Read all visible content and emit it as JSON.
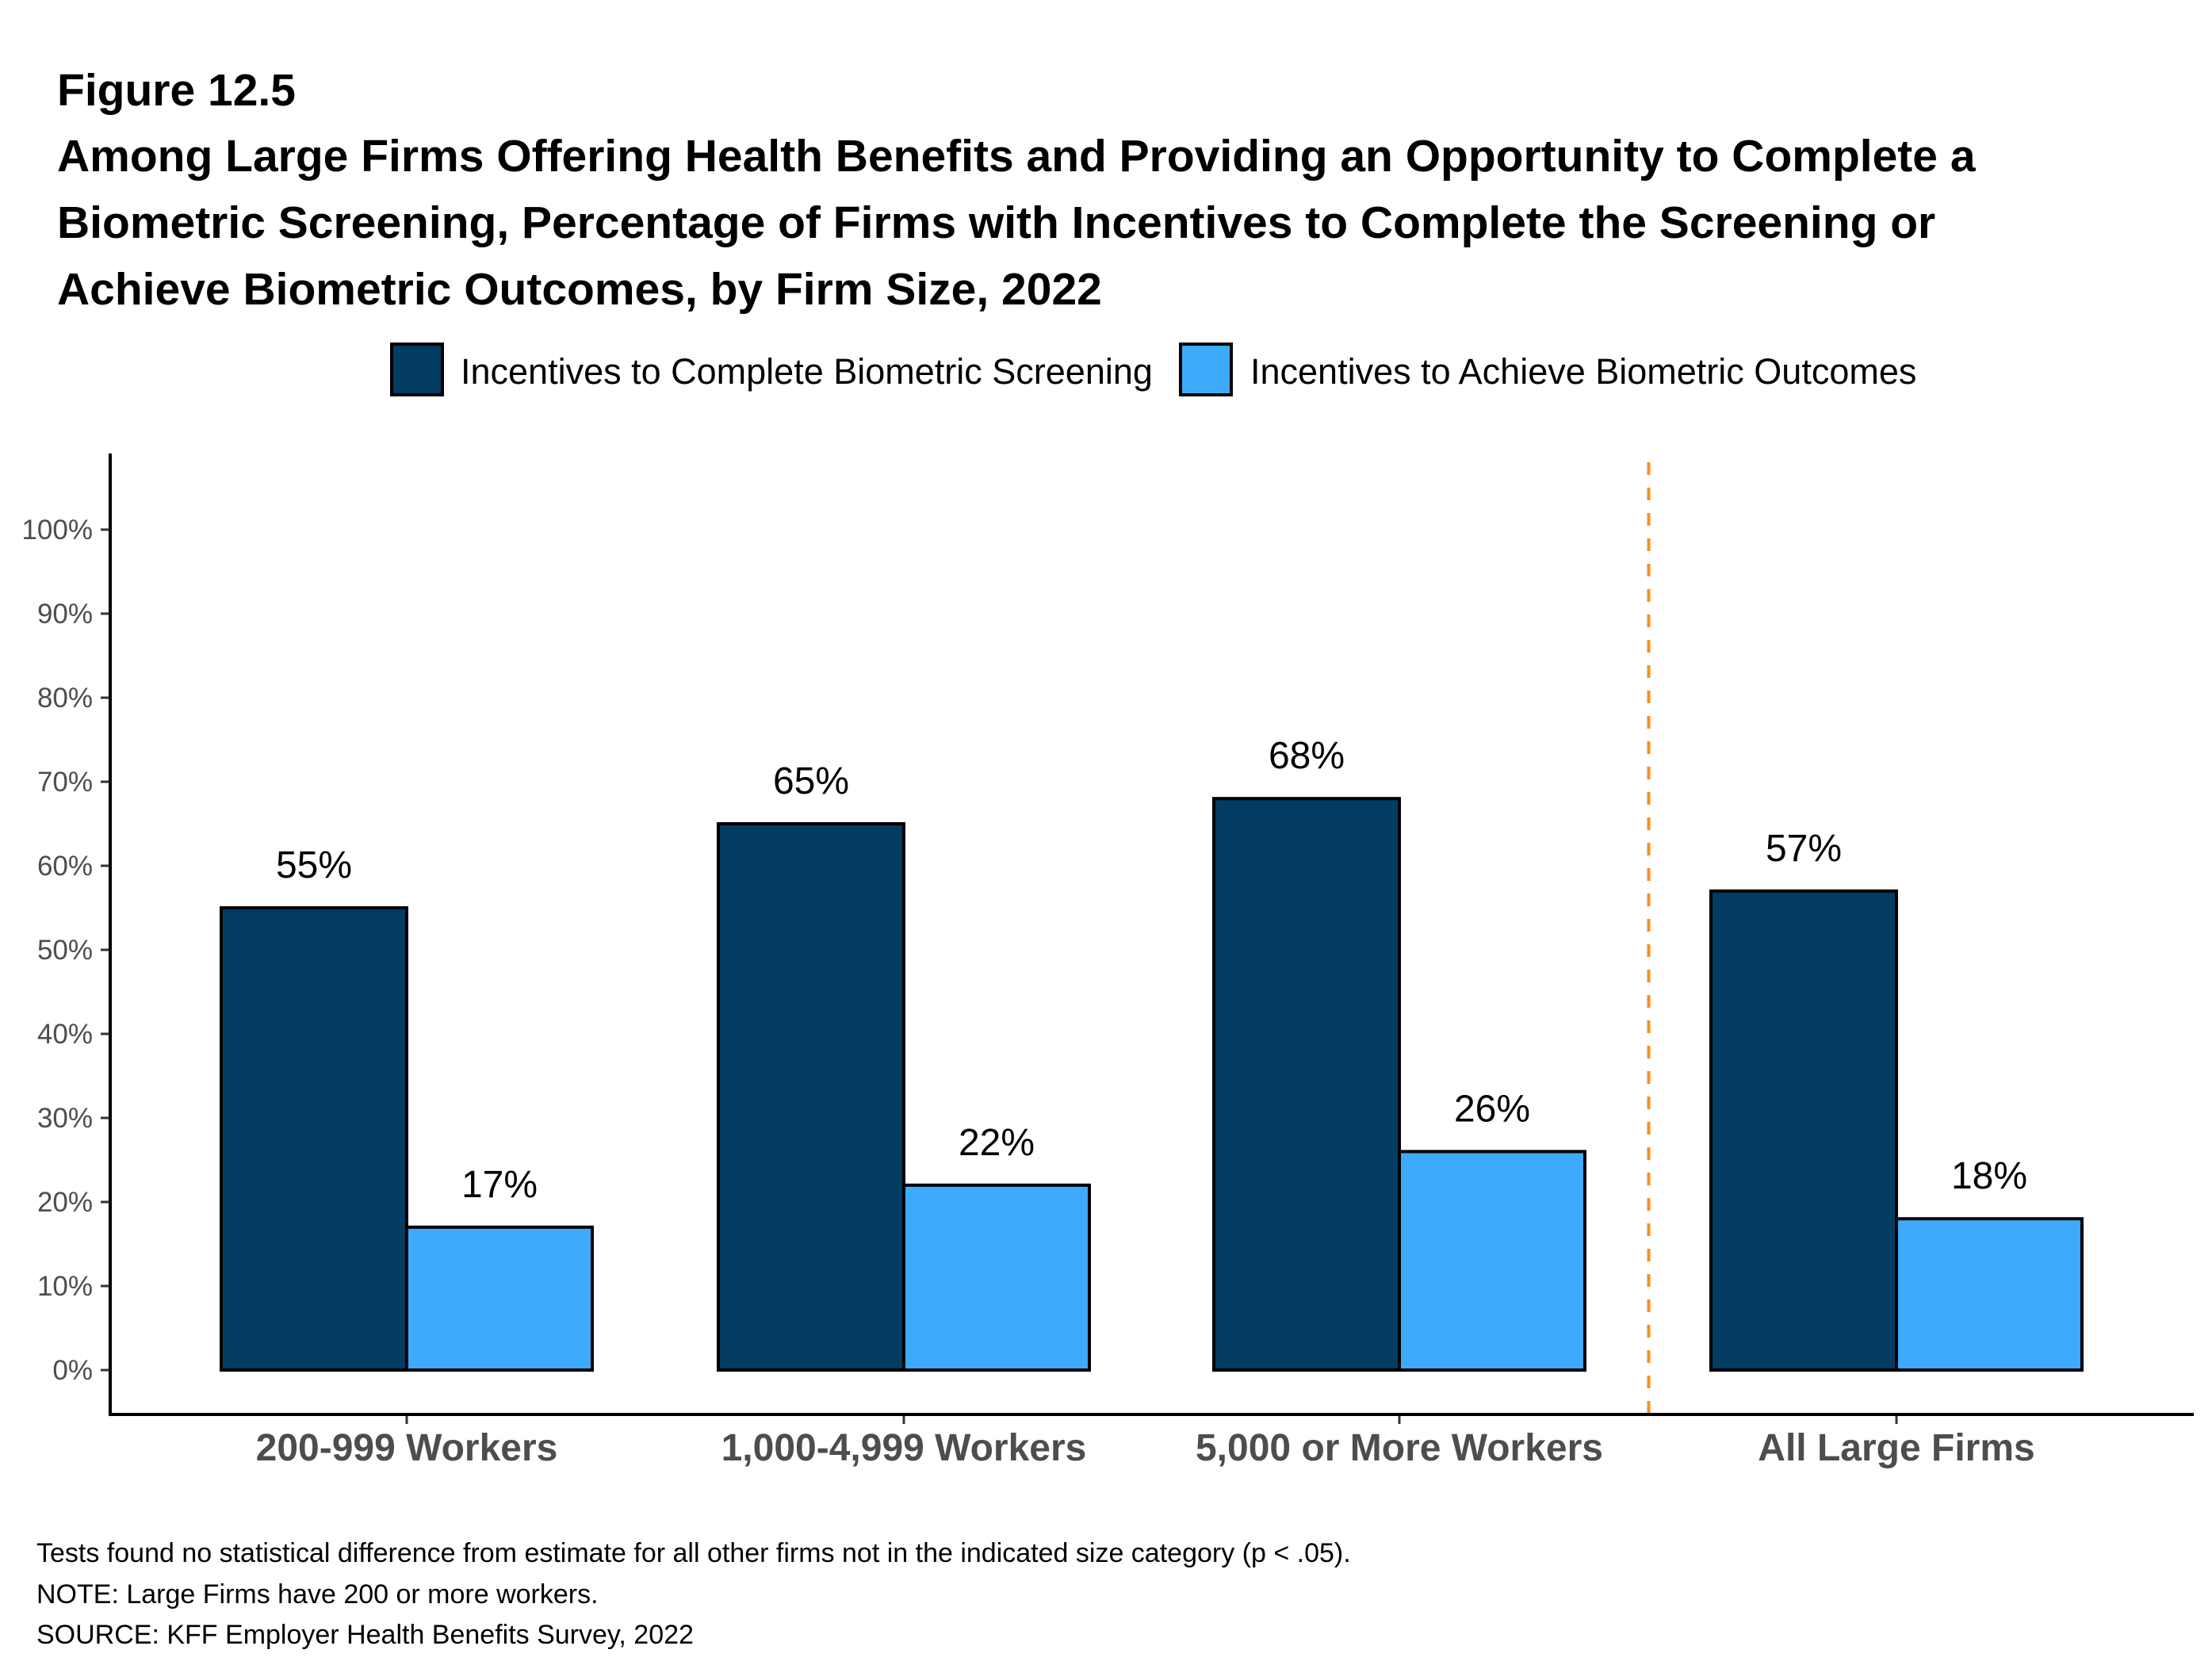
{
  "figure_number": "Figure 12.5",
  "title_lines": [
    "Among Large Firms Offering Health Benefits and Providing an Opportunity to Complete a",
    "Biometric Screening, Percentage of Firms with Incentives to Complete the Screening or",
    "Achieve Biometric Outcomes, by Firm Size, 2022"
  ],
  "footer_lines": [
    "Tests found no statistical difference from estimate for all other firms not in the indicated size category (p < .05).",
    "NOTE: Large Firms have 200 or more workers.",
    "SOURCE: KFF Employer Health Benefits Survey, 2022"
  ],
  "colors": {
    "complete_screening": "#023c62",
    "achieve_outcomes": "#3daafc",
    "separator": "#ff8c1a",
    "axis": "#000000",
    "tick_label": "#4d4d4d"
  },
  "chart_data": {
    "type": "bar",
    "title": "Among Large Firms Offering Health Benefits and Providing an Opportunity to Complete a Biometric Screening, Percentage of Firms with Incentives to Complete the Screening or Achieve Biometric Outcomes, by Firm Size, 2022",
    "categories": [
      "200-999 Workers",
      "1,000-4,999 Workers",
      "5,000 or More Workers",
      "All Large Firms"
    ],
    "series": [
      {
        "name": "Incentives to Complete Biometric Screening",
        "values": [
          55,
          65,
          68,
          57
        ],
        "labels": [
          "55%",
          "65%",
          "68%",
          "57%"
        ]
      },
      {
        "name": "Incentives to Achieve Biometric Outcomes",
        "values": [
          17,
          22,
          26,
          18
        ],
        "labels": [
          "17%",
          "22%",
          "26%",
          "18%"
        ]
      }
    ],
    "xlabel": "",
    "ylabel": "",
    "ylim": [
      0,
      100
    ],
    "yticks": [
      0,
      10,
      20,
      30,
      40,
      50,
      60,
      70,
      80,
      90,
      100
    ],
    "ytick_labels": [
      "0%",
      "10%",
      "20%",
      "30%",
      "40%",
      "50%",
      "60%",
      "70%",
      "80%",
      "90%",
      "100%"
    ],
    "grid": false,
    "legend_position": "top",
    "annotations": [
      {
        "type": "dashed-vertical-separator",
        "between": [
          "5,000 or More Workers",
          "All Large Firms"
        ]
      }
    ]
  }
}
